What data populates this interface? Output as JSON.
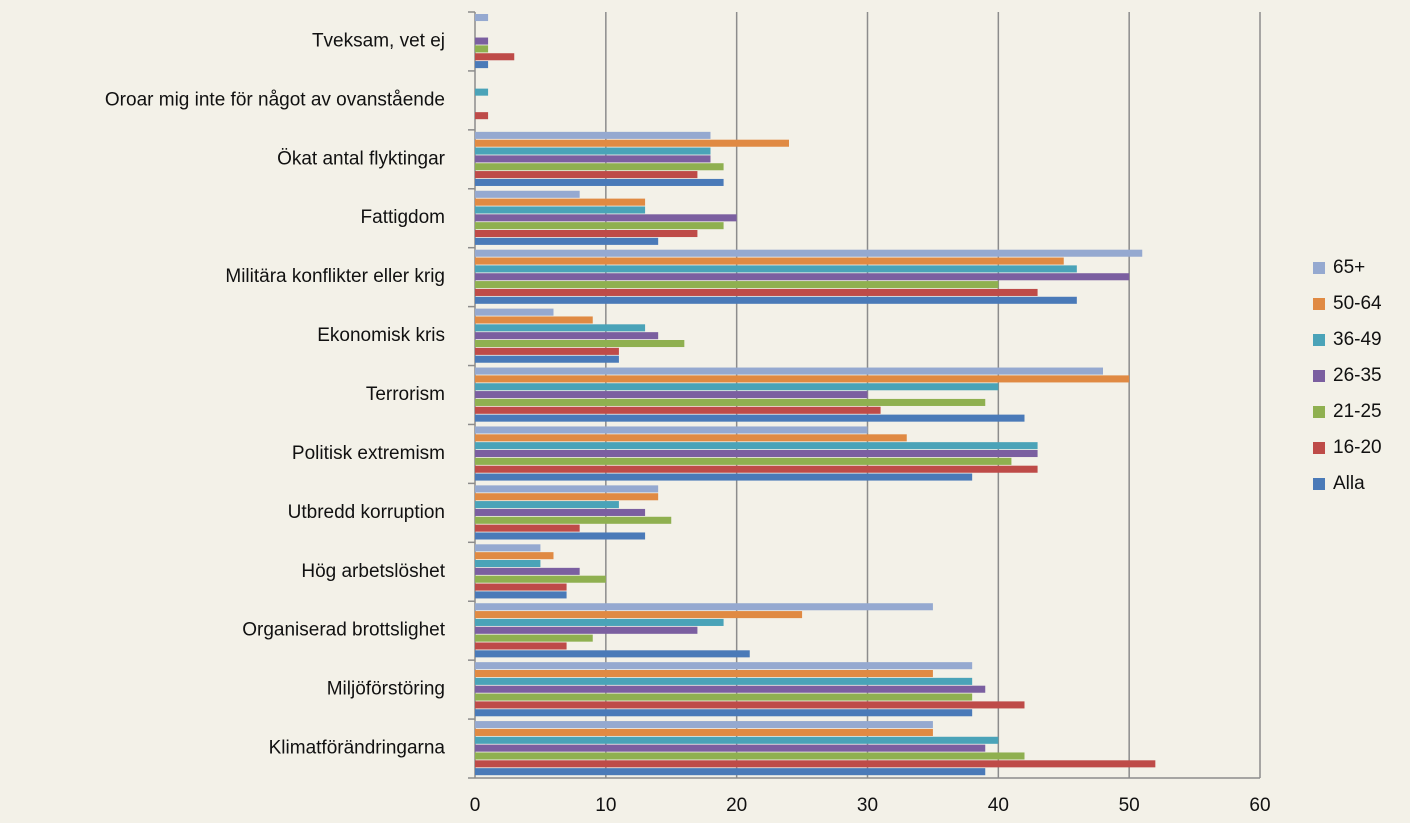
{
  "chart_data": {
    "type": "bar",
    "orientation": "horizontal",
    "categories": [
      "Tveksam, vet ej",
      "Oroar mig inte för något av ovanstående",
      "Ökat antal flyktingar",
      "Fattigdom",
      "Militära konflikter eller krig",
      "Ekonomisk kris",
      "Terrorism",
      "Politisk extremism",
      "Utbredd korruption",
      "Hög arbetslöshet",
      "Organiserad brottslighet",
      "Miljöförstöring",
      "Klimatförändringarna"
    ],
    "series": [
      {
        "name": "65+",
        "color": "#95a9d0",
        "values": [
          1,
          0,
          18,
          8,
          51,
          6,
          48,
          30,
          14,
          5,
          35,
          38,
          35
        ]
      },
      {
        "name": "50-64",
        "color": "#e08a43",
        "values": [
          0,
          0,
          24,
          13,
          45,
          9,
          50,
          33,
          14,
          6,
          25,
          35,
          35
        ]
      },
      {
        "name": "36-49",
        "color": "#4aa3b8",
        "values": [
          0,
          1,
          18,
          13,
          46,
          13,
          40,
          43,
          11,
          5,
          19,
          38,
          40
        ]
      },
      {
        "name": "26-35",
        "color": "#7b5fa0",
        "values": [
          1,
          0,
          18,
          20,
          50,
          14,
          30,
          43,
          13,
          8,
          17,
          39,
          39
        ]
      },
      {
        "name": "21-25",
        "color": "#8fb050",
        "values": [
          1,
          0,
          19,
          19,
          40,
          16,
          39,
          41,
          15,
          10,
          9,
          38,
          42
        ]
      },
      {
        "name": "16-20",
        "color": "#be4b48",
        "values": [
          3,
          1,
          17,
          17,
          43,
          11,
          31,
          43,
          8,
          7,
          7,
          42,
          52
        ]
      },
      {
        "name": "Alla",
        "color": "#4a7ab8",
        "values": [
          1,
          0,
          19,
          14,
          46,
          11,
          42,
          38,
          13,
          7,
          21,
          38,
          39
        ]
      }
    ],
    "xlim": [
      0,
      60
    ],
    "xticks": [
      0,
      10,
      20,
      30,
      40,
      50,
      60
    ],
    "grid": true,
    "legend": "right"
  }
}
